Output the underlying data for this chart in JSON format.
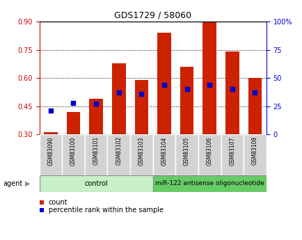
{
  "title": "GDS1729 / 58060",
  "categories": [
    "GSM83090",
    "GSM83100",
    "GSM83101",
    "GSM83102",
    "GSM83103",
    "GSM83104",
    "GSM83105",
    "GSM83106",
    "GSM83107",
    "GSM83108"
  ],
  "red_values": [
    0.31,
    0.42,
    0.49,
    0.68,
    0.59,
    0.84,
    0.66,
    0.895,
    0.74,
    0.6
  ],
  "blue_values": [
    21,
    28,
    27,
    37,
    36,
    44,
    40,
    44,
    40,
    37
  ],
  "ylim_left": [
    0.3,
    0.9
  ],
  "ylim_right": [
    0,
    100
  ],
  "yticks_left": [
    0.3,
    0.45,
    0.6,
    0.75,
    0.9
  ],
  "yticks_right": [
    0,
    25,
    50,
    75,
    100
  ],
  "ytick_labels_right": [
    "0",
    "25",
    "50",
    "75",
    "100%"
  ],
  "left_axis_color": "#cc0000",
  "right_axis_color": "#0000cc",
  "bar_color": "#cc2200",
  "dot_color": "#0000cc",
  "control_samples": 5,
  "control_label": "control",
  "treatment_label": "miR-122 antisense oligonucleotide",
  "agent_label": "agent",
  "legend_count": "count",
  "legend_pct": "percentile rank within the sample",
  "control_bg": "#c8f0c8",
  "treatment_bg": "#66cc66",
  "sample_bg": "#d3d3d3"
}
